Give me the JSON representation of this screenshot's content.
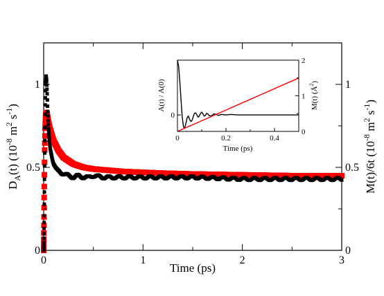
{
  "chart_data": [
    {
      "type": "scatter",
      "xlabel": "Time (ps)",
      "ylabel_left": {
        "base": "D",
        "sub": "A",
        "rest": "(t) (10",
        "exp1": "-8",
        "mid": " m",
        "exp2": "2",
        "mid2": " s",
        "exp3": "-1",
        "end": ")"
      },
      "ylabel_right": {
        "base": "M(t)/6t (10",
        "exp1": "-8",
        "mid": " m",
        "exp2": "2",
        "mid2": " s",
        "exp3": "-1",
        "end": ")"
      },
      "xlim": [
        0,
        3
      ],
      "ylim_left": [
        0,
        1.25
      ],
      "ylim_right": [
        0,
        1.25
      ],
      "x_ticks": [
        "0",
        "1",
        "2",
        "3"
      ],
      "y_ticks_left": [
        "0",
        "0.5",
        "1"
      ],
      "y_ticks_right": [
        "0",
        "0.5",
        "1"
      ],
      "series": [
        {
          "color": "#000000",
          "axis": "left",
          "x": [
            0.0,
            0.005,
            0.01,
            0.015,
            0.02,
            0.025,
            0.03,
            0.035,
            0.04,
            0.045,
            0.05,
            0.06,
            0.07,
            0.08,
            0.09,
            0.1,
            0.12,
            0.15,
            0.2,
            0.25,
            0.3,
            0.35,
            0.4,
            0.45,
            0.5,
            0.6,
            0.7,
            0.8,
            1.0,
            1.2,
            1.5,
            2.0,
            2.5,
            3.0
          ],
          "y": [
            0.0,
            0.2,
            0.55,
            0.85,
            1.0,
            1.05,
            1.02,
            0.95,
            0.85,
            0.78,
            0.72,
            0.64,
            0.6,
            0.57,
            0.54,
            0.52,
            0.5,
            0.48,
            0.46,
            0.45,
            0.44,
            0.45,
            0.44,
            0.44,
            0.45,
            0.44,
            0.44,
            0.44,
            0.44,
            0.44,
            0.44,
            0.43,
            0.43,
            0.43
          ]
        },
        {
          "color": "#ff0000",
          "axis": "right",
          "x": [
            0.0,
            0.005,
            0.01,
            0.015,
            0.02,
            0.025,
            0.03,
            0.035,
            0.04,
            0.05,
            0.06,
            0.08,
            0.1,
            0.15,
            0.2,
            0.3,
            0.4,
            0.5,
            0.6,
            0.8,
            1.0,
            1.2,
            1.5,
            2.0,
            2.5,
            3.0
          ],
          "y": [
            0.0,
            0.3,
            0.6,
            0.75,
            0.81,
            0.83,
            0.83,
            0.82,
            0.8,
            0.77,
            0.74,
            0.7,
            0.66,
            0.6,
            0.56,
            0.52,
            0.5,
            0.49,
            0.485,
            0.475,
            0.47,
            0.465,
            0.46,
            0.455,
            0.45,
            0.45
          ]
        }
      ]
    },
    {
      "type": "line",
      "xlabel": "Time (ps)",
      "ylabel_left": "A(t) / A(0)",
      "ylabel_right": {
        "base": "M(t) (",
        "unit": "Å",
        "exp": "2",
        "end": ")"
      },
      "xlim": [
        0,
        0.5
      ],
      "ylim_left": [
        -0.3,
        1.0
      ],
      "ylim_right": [
        0,
        2
      ],
      "x_ticks": [
        "0",
        "0.2",
        "0.4"
      ],
      "y_ticks_left": [
        "0"
      ],
      "y_ticks_right": [
        "0",
        "1",
        "2"
      ],
      "series": [
        {
          "color": "#000000",
          "axis": "left",
          "x": [
            0.0,
            0.005,
            0.01,
            0.015,
            0.02,
            0.025,
            0.03,
            0.035,
            0.04,
            0.045,
            0.05,
            0.055,
            0.06,
            0.065,
            0.07,
            0.075,
            0.08,
            0.085,
            0.09,
            0.095,
            0.1,
            0.105,
            0.11,
            0.115,
            0.12,
            0.125,
            0.13,
            0.14,
            0.15,
            0.16,
            0.17,
            0.18,
            0.2,
            0.22,
            0.25,
            0.3,
            0.35,
            0.4,
            0.45,
            0.5
          ],
          "y": [
            1.0,
            0.88,
            0.6,
            0.25,
            -0.05,
            -0.22,
            -0.24,
            -0.15,
            -0.05,
            -0.02,
            -0.08,
            -0.12,
            -0.1,
            -0.03,
            0.03,
            0.04,
            0.0,
            -0.04,
            -0.02,
            0.03,
            0.05,
            0.02,
            -0.02,
            -0.01,
            0.03,
            0.02,
            -0.01,
            -0.02,
            0.02,
            0.01,
            -0.01,
            0.01,
            0.0,
            0.01,
            0.0,
            0.0,
            0.0,
            0.0,
            0.0,
            0.0
          ]
        },
        {
          "color": "#ff0000",
          "axis": "right",
          "x": [
            0.0,
            0.02,
            0.05,
            0.1,
            0.2,
            0.3,
            0.4,
            0.5
          ],
          "y": [
            0.0,
            0.06,
            0.15,
            0.3,
            0.6,
            0.9,
            1.2,
            1.5
          ]
        }
      ]
    }
  ]
}
